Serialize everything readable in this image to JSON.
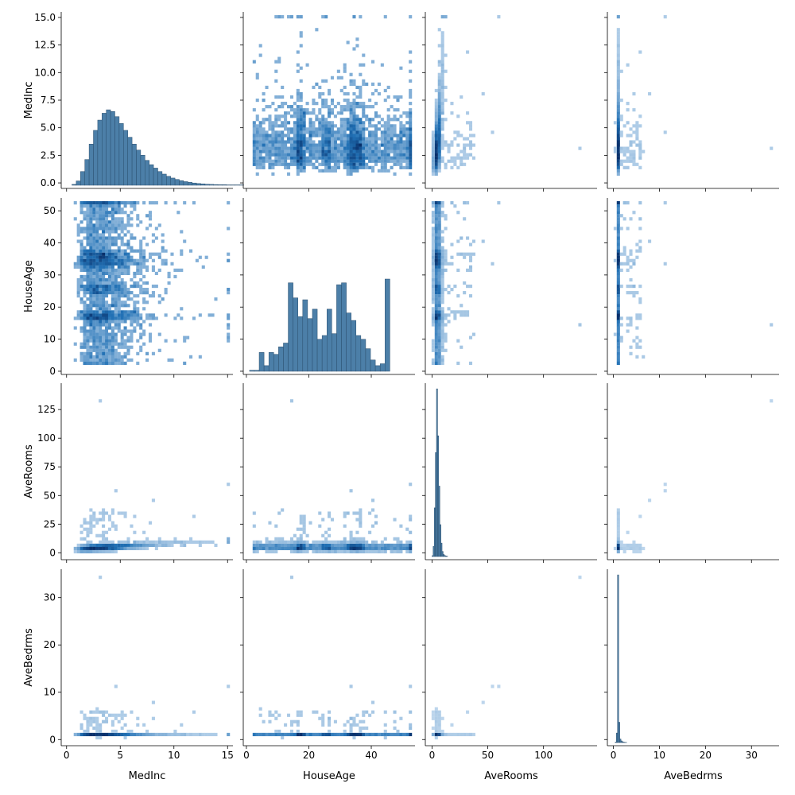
{
  "chart_data": {
    "type": "pairplot",
    "variables": [
      "MedInc",
      "HouseAge",
      "AveRooms",
      "AveBedrms"
    ],
    "axes": {
      "MedInc": {
        "range": [
          -0.5,
          15.5
        ],
        "ticks": [
          0,
          5,
          10,
          15
        ],
        "row_ticks": [
          0.0,
          2.5,
          5.0,
          7.5,
          10.0,
          12.5,
          15.0
        ],
        "row_tick_labels": [
          "0.0",
          "2.5",
          "5.0",
          "7.5",
          "10.0",
          "12.5",
          "15.0"
        ]
      },
      "HouseAge": {
        "range": [
          -1,
          54
        ],
        "ticks": [
          0,
          20,
          40
        ],
        "row_ticks": [
          0,
          10,
          20,
          30,
          40,
          50
        ],
        "row_tick_labels": [
          "0",
          "10",
          "20",
          "30",
          "40",
          "50"
        ]
      },
      "AveRooms": {
        "range": [
          -6,
          148
        ],
        "ticks": [
          0,
          50,
          100
        ],
        "row_ticks": [
          0,
          25,
          50,
          75,
          100,
          125
        ],
        "row_tick_labels": [
          "0",
          "25",
          "50",
          "75",
          "100",
          "125"
        ]
      },
      "AveBedrms": {
        "range": [
          -1.3,
          36
        ],
        "ticks": [
          0,
          10,
          20,
          30
        ],
        "row_ticks": [
          0,
          10,
          20,
          30
        ],
        "row_tick_labels": [
          "0",
          "10",
          "20",
          "30"
        ]
      }
    },
    "diagonal": {
      "MedInc": {
        "bin_edges_start": 0.5,
        "bin_width": 0.4,
        "counts": [
          5,
          25,
          80,
          150,
          240,
          320,
          380,
          420,
          440,
          430,
          400,
          360,
          320,
          280,
          240,
          205,
          175,
          145,
          120,
          100,
          80,
          65,
          52,
          42,
          34,
          27,
          21,
          17,
          13,
          10,
          8,
          6,
          5,
          4,
          3,
          3,
          2,
          2,
          2,
          2
        ]
      },
      "HouseAge": {
        "bin_edges_start": 1,
        "bin_width": 1.55,
        "counts": [
          5,
          5,
          100,
          30,
          100,
          90,
          130,
          150,
          470,
          390,
          290,
          380,
          280,
          330,
          170,
          190,
          330,
          200,
          460,
          470,
          310,
          270,
          190,
          170,
          120,
          60,
          30,
          40,
          490
        ]
      },
      "AveRooms": {
        "bin_edges_start": 0,
        "bin_width": 1,
        "counts": [
          5,
          60,
          290,
          620,
          1000,
          720,
          420,
          190,
          80,
          30,
          12,
          6,
          3,
          2
        ]
      },
      "AveBedrms": {
        "bin_edges_start": 0.4,
        "bin_width": 0.25,
        "counts": [
          20,
          350,
          6200,
          750,
          130,
          60,
          30,
          15,
          8,
          5
        ]
      }
    },
    "scatter_samples": {
      "MedInc": [
        3.9,
        2.7,
        5.2,
        1.8,
        4.6,
        3.1,
        7.4,
        2.2,
        6.1,
        4.0,
        3.5,
        8.9,
        2.9,
        5.7,
        1.5,
        10.6,
        3.3,
        4.8,
        15.0,
        12.2
      ],
      "HouseAge": [
        52,
        33,
        16,
        26,
        36,
        44,
        18,
        52,
        10,
        37,
        29,
        21,
        5,
        17,
        34,
        24,
        39,
        15,
        52,
        46
      ],
      "AveRooms": [
        4.6,
        5.2,
        6.0,
        4.3,
        5.5,
        5.0,
        7.1,
        3.9,
        6.5,
        5.3,
        4.9,
        8.2,
        4.7,
        6.4,
        3.8,
        11.5,
        5.6,
        24.0,
        60.0,
        132.0
      ],
      "AveBedrms": [
        1.02,
        1.06,
        1.08,
        1.0,
        1.05,
        1.04,
        1.12,
        0.98,
        1.1,
        1.06,
        1.03,
        1.2,
        1.01,
        1.09,
        0.95,
        1.8,
        1.07,
        4.5,
        11.0,
        34.0
      ]
    }
  }
}
